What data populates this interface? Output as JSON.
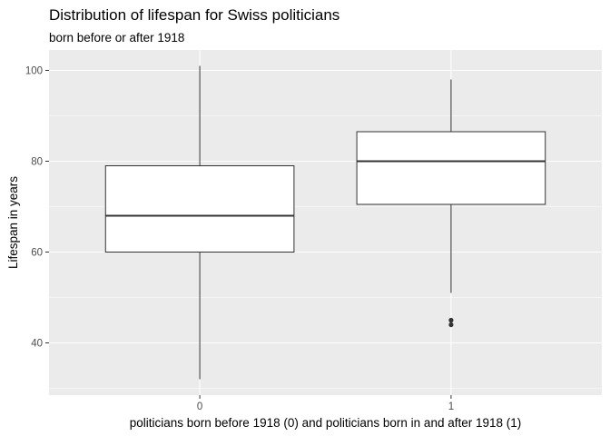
{
  "chart_data": {
    "type": "boxplot",
    "title": "Distribution of lifespan for Swiss politicians",
    "subtitle": "born before or after 1918",
    "xlabel": "politicians born before 1918 (0) and politicians born in and after 1918 (1)",
    "ylabel": "Lifespan in years",
    "ylim": [
      28.5,
      104.5
    ],
    "yticks": [
      40,
      60,
      80,
      100
    ],
    "grid": true,
    "categories": [
      "0",
      "1"
    ],
    "boxes": [
      {
        "category": "0",
        "whisker_low": 32,
        "q1": 60,
        "median": 68,
        "q3": 79,
        "whisker_high": 101,
        "outliers": []
      },
      {
        "category": "1",
        "whisker_low": 51,
        "q1": 70.5,
        "median": 80,
        "q3": 86.5,
        "whisker_high": 98,
        "outliers": [
          44,
          45
        ]
      }
    ],
    "colors": {
      "panel": "#ebebeb",
      "grid": "#ffffff",
      "box_fill": "#ffffff",
      "box_line": "#333333"
    }
  }
}
